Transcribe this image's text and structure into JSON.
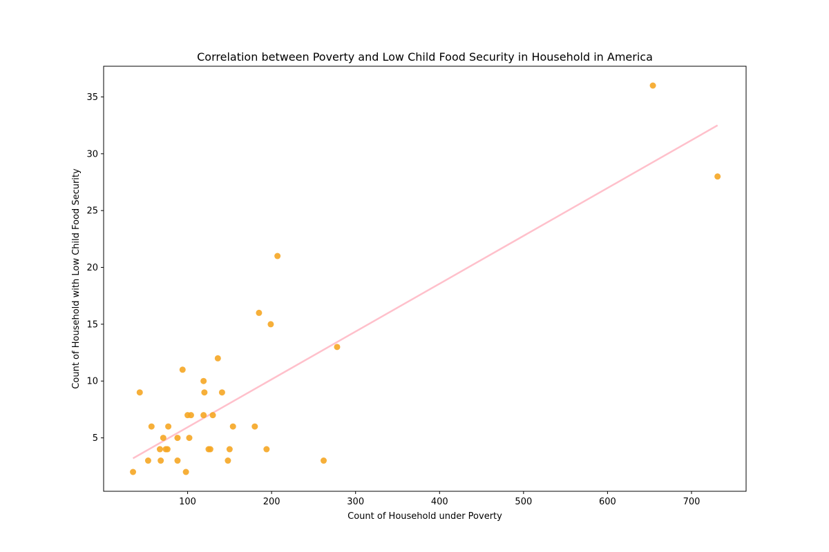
{
  "chart_data": {
    "type": "scatter",
    "title": "Correlation between Poverty and Low Child Food Security in Household in America",
    "xlabel": "Count of Household under Poverty",
    "ylabel": "Count of Household with Low Child Food Security",
    "xlim": [
      0,
      765
    ],
    "ylim": [
      0.3,
      37.7
    ],
    "xticks": [
      100,
      200,
      300,
      400,
      500,
      600,
      700
    ],
    "yticks": [
      5,
      10,
      15,
      20,
      25,
      30,
      35
    ],
    "grid": false,
    "point_color": "#f5a623",
    "line_color": "#ffc0cb",
    "points": [
      {
        "x": 35,
        "y": 2
      },
      {
        "x": 43,
        "y": 9
      },
      {
        "x": 53,
        "y": 3
      },
      {
        "x": 57,
        "y": 6
      },
      {
        "x": 67,
        "y": 4
      },
      {
        "x": 68,
        "y": 3
      },
      {
        "x": 71,
        "y": 5
      },
      {
        "x": 74,
        "y": 4
      },
      {
        "x": 76,
        "y": 4
      },
      {
        "x": 77,
        "y": 6
      },
      {
        "x": 88,
        "y": 5
      },
      {
        "x": 88,
        "y": 3
      },
      {
        "x": 94,
        "y": 11
      },
      {
        "x": 98,
        "y": 2
      },
      {
        "x": 100,
        "y": 7
      },
      {
        "x": 102,
        "y": 5
      },
      {
        "x": 104,
        "y": 7
      },
      {
        "x": 119,
        "y": 10
      },
      {
        "x": 119,
        "y": 7
      },
      {
        "x": 120,
        "y": 9
      },
      {
        "x": 125,
        "y": 4
      },
      {
        "x": 127,
        "y": 4
      },
      {
        "x": 130,
        "y": 7
      },
      {
        "x": 136,
        "y": 12
      },
      {
        "x": 141,
        "y": 9
      },
      {
        "x": 148,
        "y": 3
      },
      {
        "x": 150,
        "y": 4
      },
      {
        "x": 154,
        "y": 6
      },
      {
        "x": 180,
        "y": 6
      },
      {
        "x": 185,
        "y": 16
      },
      {
        "x": 194,
        "y": 4
      },
      {
        "x": 199,
        "y": 15
      },
      {
        "x": 207,
        "y": 21
      },
      {
        "x": 262,
        "y": 3
      },
      {
        "x": 278,
        "y": 13
      },
      {
        "x": 654,
        "y": 36
      },
      {
        "x": 731,
        "y": 28
      }
    ],
    "trendline": [
      {
        "x": 35,
        "y": 3.2
      },
      {
        "x": 731,
        "y": 32.5
      }
    ]
  }
}
